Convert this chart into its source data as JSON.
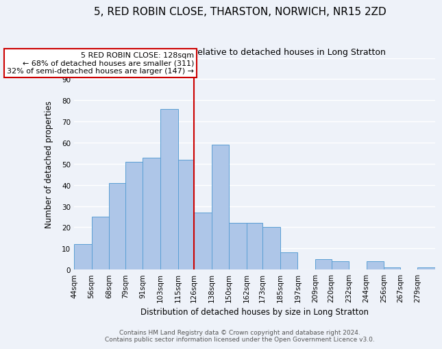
{
  "title": "5, RED ROBIN CLOSE, THARSTON, NORWICH, NR15 2ZD",
  "subtitle": "Size of property relative to detached houses in Long Stratton",
  "xlabel": "Distribution of detached houses by size in Long Stratton",
  "ylabel": "Number of detached properties",
  "bin_labels": [
    "44sqm",
    "56sqm",
    "68sqm",
    "79sqm",
    "91sqm",
    "103sqm",
    "115sqm",
    "126sqm",
    "138sqm",
    "150sqm",
    "162sqm",
    "173sqm",
    "185sqm",
    "197sqm",
    "209sqm",
    "220sqm",
    "232sqm",
    "244sqm",
    "256sqm",
    "267sqm",
    "279sqm"
  ],
  "bin_edges": [
    44,
    56,
    68,
    79,
    91,
    103,
    115,
    126,
    138,
    150,
    162,
    173,
    185,
    197,
    209,
    220,
    232,
    244,
    256,
    267,
    279,
    291
  ],
  "counts": [
    12,
    25,
    41,
    51,
    53,
    76,
    52,
    27,
    59,
    22,
    22,
    20,
    8,
    0,
    5,
    4,
    0,
    4,
    1,
    0,
    1
  ],
  "bar_color": "#aec6e8",
  "bar_edge_color": "#5a9fd4",
  "marker_value": 126,
  "marker_color": "#cc0000",
  "annotation_title": "5 RED ROBIN CLOSE: 128sqm",
  "annotation_line1": "← 68% of detached houses are smaller (311)",
  "annotation_line2": "32% of semi-detached houses are larger (147) →",
  "annotation_box_color": "#ffffff",
  "annotation_box_edge_color": "#cc0000",
  "ylim": [
    0,
    100
  ],
  "yticks": [
    0,
    10,
    20,
    30,
    40,
    50,
    60,
    70,
    80,
    90,
    100
  ],
  "footer_line1": "Contains HM Land Registry data © Crown copyright and database right 2024.",
  "footer_line2": "Contains public sector information licensed under the Open Government Licence v3.0.",
  "bg_color": "#eef2f9",
  "grid_color": "#ffffff",
  "title_fontsize": 11,
  "subtitle_fontsize": 9,
  "axis_label_fontsize": 8.5,
  "tick_fontsize": 7.5,
  "footer_fontsize": 6.5
}
